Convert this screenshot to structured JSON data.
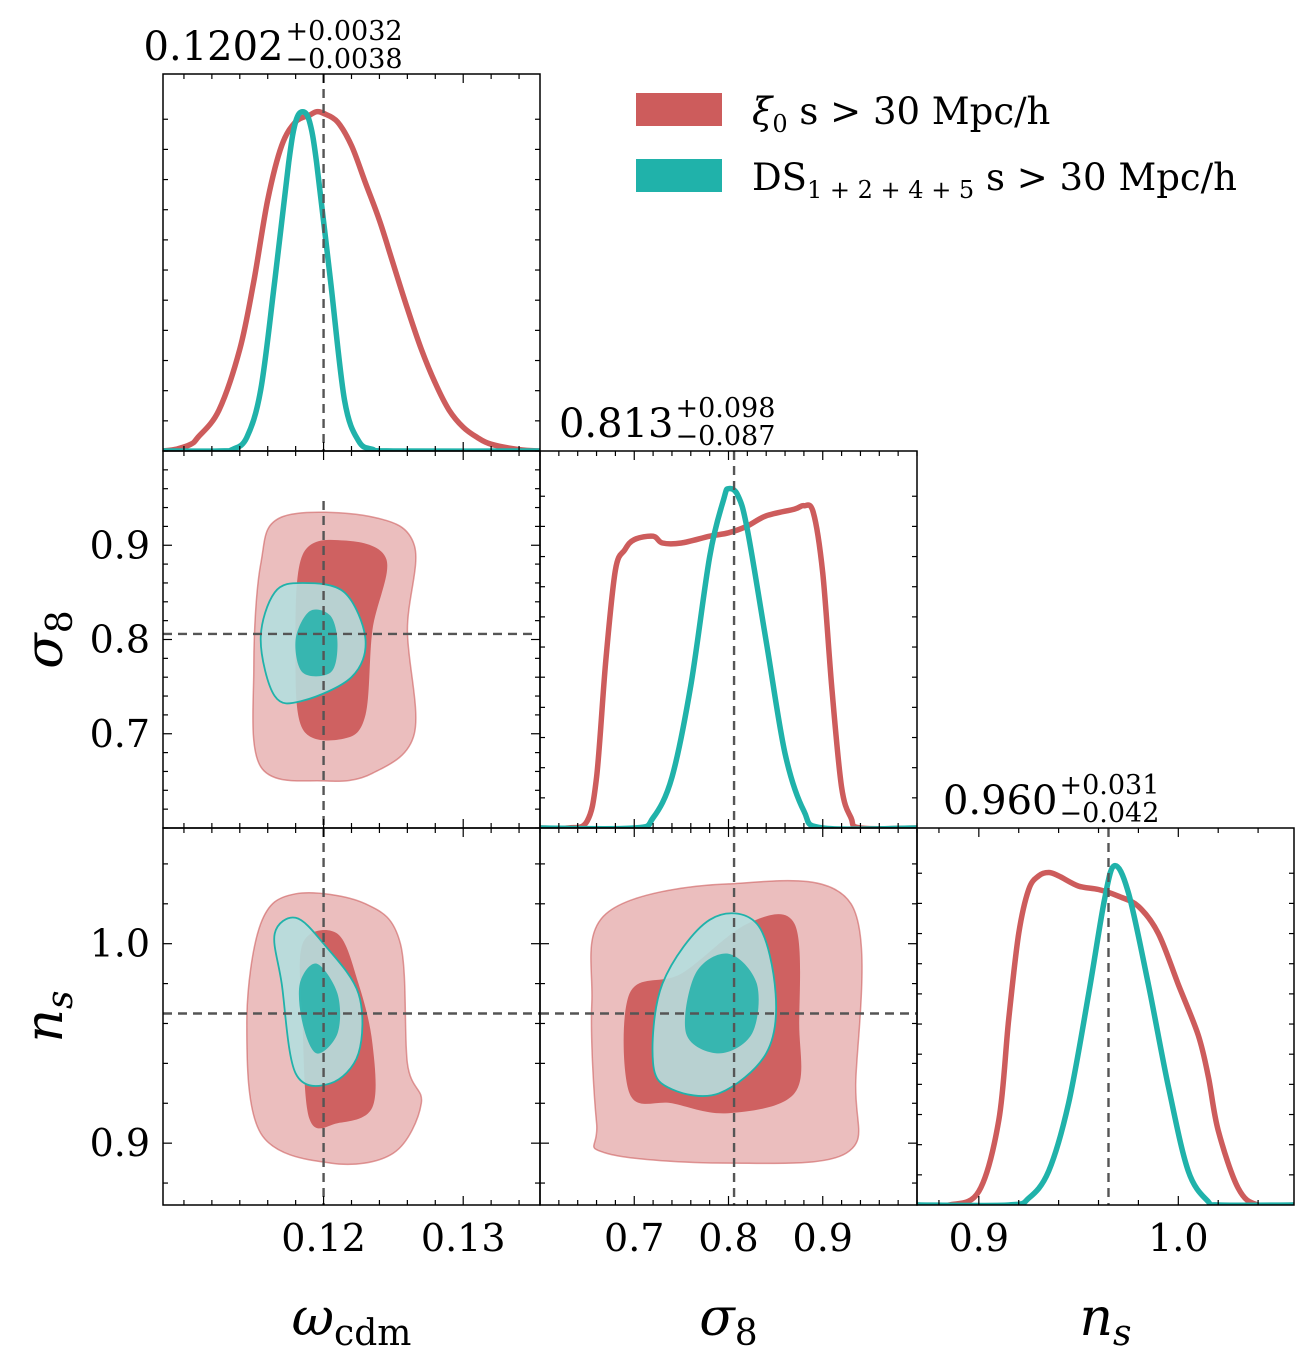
{
  "colors": {
    "xi0": "#cd5c5c",
    "ds": "#20b2aa",
    "truth_line": "#555555"
  },
  "legend": {
    "position": "top-right",
    "entries": [
      {
        "id": "xi0",
        "label": "ξ0 s > 30 Mpc/h",
        "main": "ξ",
        "sub": "0",
        "rest": " s > 30 Mpc/h"
      },
      {
        "id": "ds",
        "label": "DS1+2+4+5 s > 30 Mpc/h",
        "main": "DS",
        "sub": "1 + 2 + 4 + 5",
        "rest": " s > 30 Mpc/h"
      }
    ]
  },
  "chart_data": {
    "type": "corner",
    "parameters": [
      {
        "key": "omega_cdm",
        "label_main": "ω",
        "label_sub": "cdm",
        "range": [
          0.1085,
          0.1355
        ],
        "ticks": [
          0.12,
          0.13
        ],
        "tick_labels": [
          "0.12",
          "0.13"
        ],
        "truth": 0.12,
        "title": {
          "value": "0.1202",
          "plus": "+0.0032",
          "minus": "−0.0038"
        }
      },
      {
        "key": "sigma8",
        "label_main": "σ",
        "label_sub": "8",
        "range": [
          0.6,
          1.0
        ],
        "ticks": [
          0.7,
          0.8,
          0.9
        ],
        "tick_labels": [
          "0.7",
          "0.8",
          "0.9"
        ],
        "truth": 0.8059,
        "title": {
          "value": "0.813",
          "plus": "+0.098",
          "minus": "−0.087"
        }
      },
      {
        "key": "n_s",
        "label_main": "n",
        "label_sub": "s",
        "range": [
          0.869,
          1.058
        ],
        "ticks": [
          0.9,
          1.0
        ],
        "tick_labels": [
          "0.9",
          "1.0"
        ],
        "truth": 0.965,
        "title": {
          "value": "0.960",
          "plus": "+0.031",
          "minus": "−0.042"
        }
      }
    ],
    "marginals": {
      "omega_cdm": {
        "xi0": [
          [
            0.1085,
            0.0
          ],
          [
            0.1095,
            0.006
          ],
          [
            0.1105,
            0.02
          ],
          [
            0.111,
            0.04
          ],
          [
            0.1125,
            0.12
          ],
          [
            0.114,
            0.3
          ],
          [
            0.115,
            0.5
          ],
          [
            0.116,
            0.74
          ],
          [
            0.117,
            0.9
          ],
          [
            0.118,
            0.97
          ],
          [
            0.119,
            0.99
          ],
          [
            0.1195,
            1.0
          ],
          [
            0.12,
            0.995
          ],
          [
            0.121,
            0.97
          ],
          [
            0.122,
            0.9
          ],
          [
            0.123,
            0.79
          ],
          [
            0.124,
            0.68
          ],
          [
            0.125,
            0.55
          ],
          [
            0.126,
            0.42
          ],
          [
            0.127,
            0.3
          ],
          [
            0.128,
            0.2
          ],
          [
            0.129,
            0.12
          ],
          [
            0.13,
            0.07
          ],
          [
            0.131,
            0.04
          ],
          [
            0.132,
            0.02
          ],
          [
            0.134,
            0.004
          ],
          [
            0.1355,
            0.0
          ]
        ],
        "ds": [
          [
            0.1085,
            0.0
          ],
          [
            0.1125,
            0.0
          ],
          [
            0.1135,
            0.005
          ],
          [
            0.1145,
            0.04
          ],
          [
            0.1155,
            0.18
          ],
          [
            0.1165,
            0.5
          ],
          [
            0.1175,
            0.85
          ],
          [
            0.118,
            0.97
          ],
          [
            0.1185,
            1.0
          ],
          [
            0.119,
            0.97
          ],
          [
            0.1195,
            0.85
          ],
          [
            0.1205,
            0.5
          ],
          [
            0.1215,
            0.15
          ],
          [
            0.1225,
            0.03
          ],
          [
            0.1235,
            0.005
          ],
          [
            0.125,
            0.0
          ],
          [
            0.1355,
            0.0
          ]
        ]
      },
      "sigma8": {
        "xi0": [
          [
            0.6,
            0.0
          ],
          [
            0.63,
            0.0
          ],
          [
            0.65,
            0.02
          ],
          [
            0.66,
            0.15
          ],
          [
            0.67,
            0.5
          ],
          [
            0.68,
            0.76
          ],
          [
            0.69,
            0.82
          ],
          [
            0.7,
            0.85
          ],
          [
            0.72,
            0.86
          ],
          [
            0.73,
            0.84
          ],
          [
            0.75,
            0.84
          ],
          [
            0.78,
            0.86
          ],
          [
            0.8,
            0.87
          ],
          [
            0.82,
            0.89
          ],
          [
            0.84,
            0.92
          ],
          [
            0.87,
            0.94
          ],
          [
            0.88,
            0.95
          ],
          [
            0.89,
            0.93
          ],
          [
            0.9,
            0.75
          ],
          [
            0.91,
            0.4
          ],
          [
            0.92,
            0.12
          ],
          [
            0.93,
            0.03
          ],
          [
            0.94,
            0.0
          ],
          [
            1.0,
            0.0
          ]
        ],
        "ds": [
          [
            0.6,
            0.0
          ],
          [
            0.7,
            0.0
          ],
          [
            0.72,
            0.03
          ],
          [
            0.74,
            0.15
          ],
          [
            0.76,
            0.42
          ],
          [
            0.78,
            0.8
          ],
          [
            0.795,
            0.97
          ],
          [
            0.8,
            1.0
          ],
          [
            0.81,
            0.98
          ],
          [
            0.82,
            0.88
          ],
          [
            0.84,
            0.55
          ],
          [
            0.86,
            0.22
          ],
          [
            0.88,
            0.05
          ],
          [
            0.9,
            0.0
          ],
          [
            1.0,
            0.0
          ]
        ]
      },
      "n_s": {
        "xi0": [
          [
            0.869,
            0.0
          ],
          [
            0.885,
            0.0
          ],
          [
            0.9,
            0.04
          ],
          [
            0.91,
            0.25
          ],
          [
            0.915,
            0.55
          ],
          [
            0.92,
            0.8
          ],
          [
            0.925,
            0.93
          ],
          [
            0.93,
            0.97
          ],
          [
            0.935,
            0.98
          ],
          [
            0.94,
            0.97
          ],
          [
            0.95,
            0.94
          ],
          [
            0.96,
            0.93
          ],
          [
            0.97,
            0.91
          ],
          [
            0.98,
            0.88
          ],
          [
            0.99,
            0.8
          ],
          [
            1.0,
            0.65
          ],
          [
            1.01,
            0.5
          ],
          [
            1.015,
            0.38
          ],
          [
            1.02,
            0.22
          ],
          [
            1.03,
            0.05
          ],
          [
            1.04,
            0.0
          ],
          [
            1.058,
            0.0
          ]
        ],
        "ds": [
          [
            0.869,
            0.0
          ],
          [
            0.915,
            0.0
          ],
          [
            0.925,
            0.02
          ],
          [
            0.935,
            0.1
          ],
          [
            0.945,
            0.3
          ],
          [
            0.955,
            0.62
          ],
          [
            0.963,
            0.9
          ],
          [
            0.968,
            1.0
          ],
          [
            0.975,
            0.92
          ],
          [
            0.985,
            0.65
          ],
          [
            0.995,
            0.35
          ],
          [
            1.005,
            0.1
          ],
          [
            1.015,
            0.01
          ],
          [
            1.02,
            0.0
          ],
          [
            1.058,
            0.0
          ]
        ]
      }
    },
    "contours_2d": [
      {
        "x": "omega_cdm",
        "y": "sigma8",
        "xi0_outer": [
          [
            0.1155,
            0.665
          ],
          [
            0.115,
            0.77
          ],
          [
            0.1155,
            0.88
          ],
          [
            0.117,
            0.93
          ],
          [
            0.1235,
            0.93
          ],
          [
            0.1265,
            0.9
          ],
          [
            0.126,
            0.81
          ],
          [
            0.1265,
            0.7
          ],
          [
            0.1235,
            0.658
          ],
          [
            0.12,
            0.65
          ]
        ],
        "xi0_inner": [
          [
            0.1185,
            0.705
          ],
          [
            0.118,
            0.79
          ],
          [
            0.1185,
            0.89
          ],
          [
            0.1215,
            0.905
          ],
          [
            0.1245,
            0.885
          ],
          [
            0.1235,
            0.81
          ],
          [
            0.123,
            0.72
          ],
          [
            0.1215,
            0.695
          ]
        ],
        "ds_outer": [
          [
            0.1165,
            0.74
          ],
          [
            0.1155,
            0.8
          ],
          [
            0.1165,
            0.85
          ],
          [
            0.1185,
            0.86
          ],
          [
            0.1215,
            0.85
          ],
          [
            0.123,
            0.8
          ],
          [
            0.122,
            0.76
          ],
          [
            0.1185,
            0.735
          ]
        ],
        "ds_inner": [
          [
            0.1185,
            0.765
          ],
          [
            0.118,
            0.8
          ],
          [
            0.119,
            0.83
          ],
          [
            0.1205,
            0.825
          ],
          [
            0.121,
            0.795
          ],
          [
            0.1205,
            0.765
          ]
        ]
      },
      {
        "x": "omega_cdm",
        "y": "n_s",
        "xi0_outer": [
          [
            0.1155,
            0.905
          ],
          [
            0.1145,
            0.96
          ],
          [
            0.1155,
            1.01
          ],
          [
            0.118,
            1.025
          ],
          [
            0.123,
            1.02
          ],
          [
            0.1255,
            1.0
          ],
          [
            0.126,
            0.94
          ],
          [
            0.127,
            0.92
          ],
          [
            0.125,
            0.895
          ],
          [
            0.1205,
            0.89
          ]
        ],
        "xi0_inner": [
          [
            0.119,
            0.912
          ],
          [
            0.1185,
            0.96
          ],
          [
            0.1185,
            1.0
          ],
          [
            0.121,
            1.005
          ],
          [
            0.1225,
            0.98
          ],
          [
            0.1235,
            0.95
          ],
          [
            0.1235,
            0.918
          ],
          [
            0.121,
            0.91
          ]
        ],
        "ds_outer": [
          [
            0.117,
            0.98
          ],
          [
            0.1165,
            1.005
          ],
          [
            0.118,
            1.013
          ],
          [
            0.12,
            1.0
          ],
          [
            0.1225,
            0.975
          ],
          [
            0.1225,
            0.945
          ],
          [
            0.1205,
            0.93
          ],
          [
            0.118,
            0.935
          ]
        ],
        "ds_inner": [
          [
            0.1185,
            0.96
          ],
          [
            0.1183,
            0.98
          ],
          [
            0.1195,
            0.99
          ],
          [
            0.121,
            0.975
          ],
          [
            0.121,
            0.955
          ],
          [
            0.1195,
            0.945
          ]
        ]
      },
      {
        "x": "sigma8",
        "y": "n_s",
        "xi0_outer": [
          [
            0.66,
            0.91
          ],
          [
            0.655,
            0.97
          ],
          [
            0.67,
            1.015
          ],
          [
            0.8,
            1.03
          ],
          [
            0.93,
            1.02
          ],
          [
            0.935,
            0.93
          ],
          [
            0.925,
            0.895
          ],
          [
            0.8,
            0.89
          ],
          [
            0.67,
            0.895
          ]
        ],
        "xi0_inner": [
          [
            0.695,
            0.925
          ],
          [
            0.695,
            0.975
          ],
          [
            0.75,
            0.985
          ],
          [
            0.82,
            1.01
          ],
          [
            0.87,
            1.01
          ],
          [
            0.875,
            0.96
          ],
          [
            0.87,
            0.925
          ],
          [
            0.8,
            0.915
          ],
          [
            0.74,
            0.92
          ]
        ],
        "ds_outer": [
          [
            0.72,
            0.94
          ],
          [
            0.73,
            0.98
          ],
          [
            0.78,
            1.012
          ],
          [
            0.83,
            1.01
          ],
          [
            0.85,
            0.975
          ],
          [
            0.84,
            0.945
          ],
          [
            0.79,
            0.925
          ],
          [
            0.74,
            0.927
          ]
        ],
        "ds_inner": [
          [
            0.755,
            0.955
          ],
          [
            0.765,
            0.985
          ],
          [
            0.8,
            0.995
          ],
          [
            0.83,
            0.98
          ],
          [
            0.825,
            0.955
          ],
          [
            0.79,
            0.945
          ]
        ]
      }
    ]
  }
}
